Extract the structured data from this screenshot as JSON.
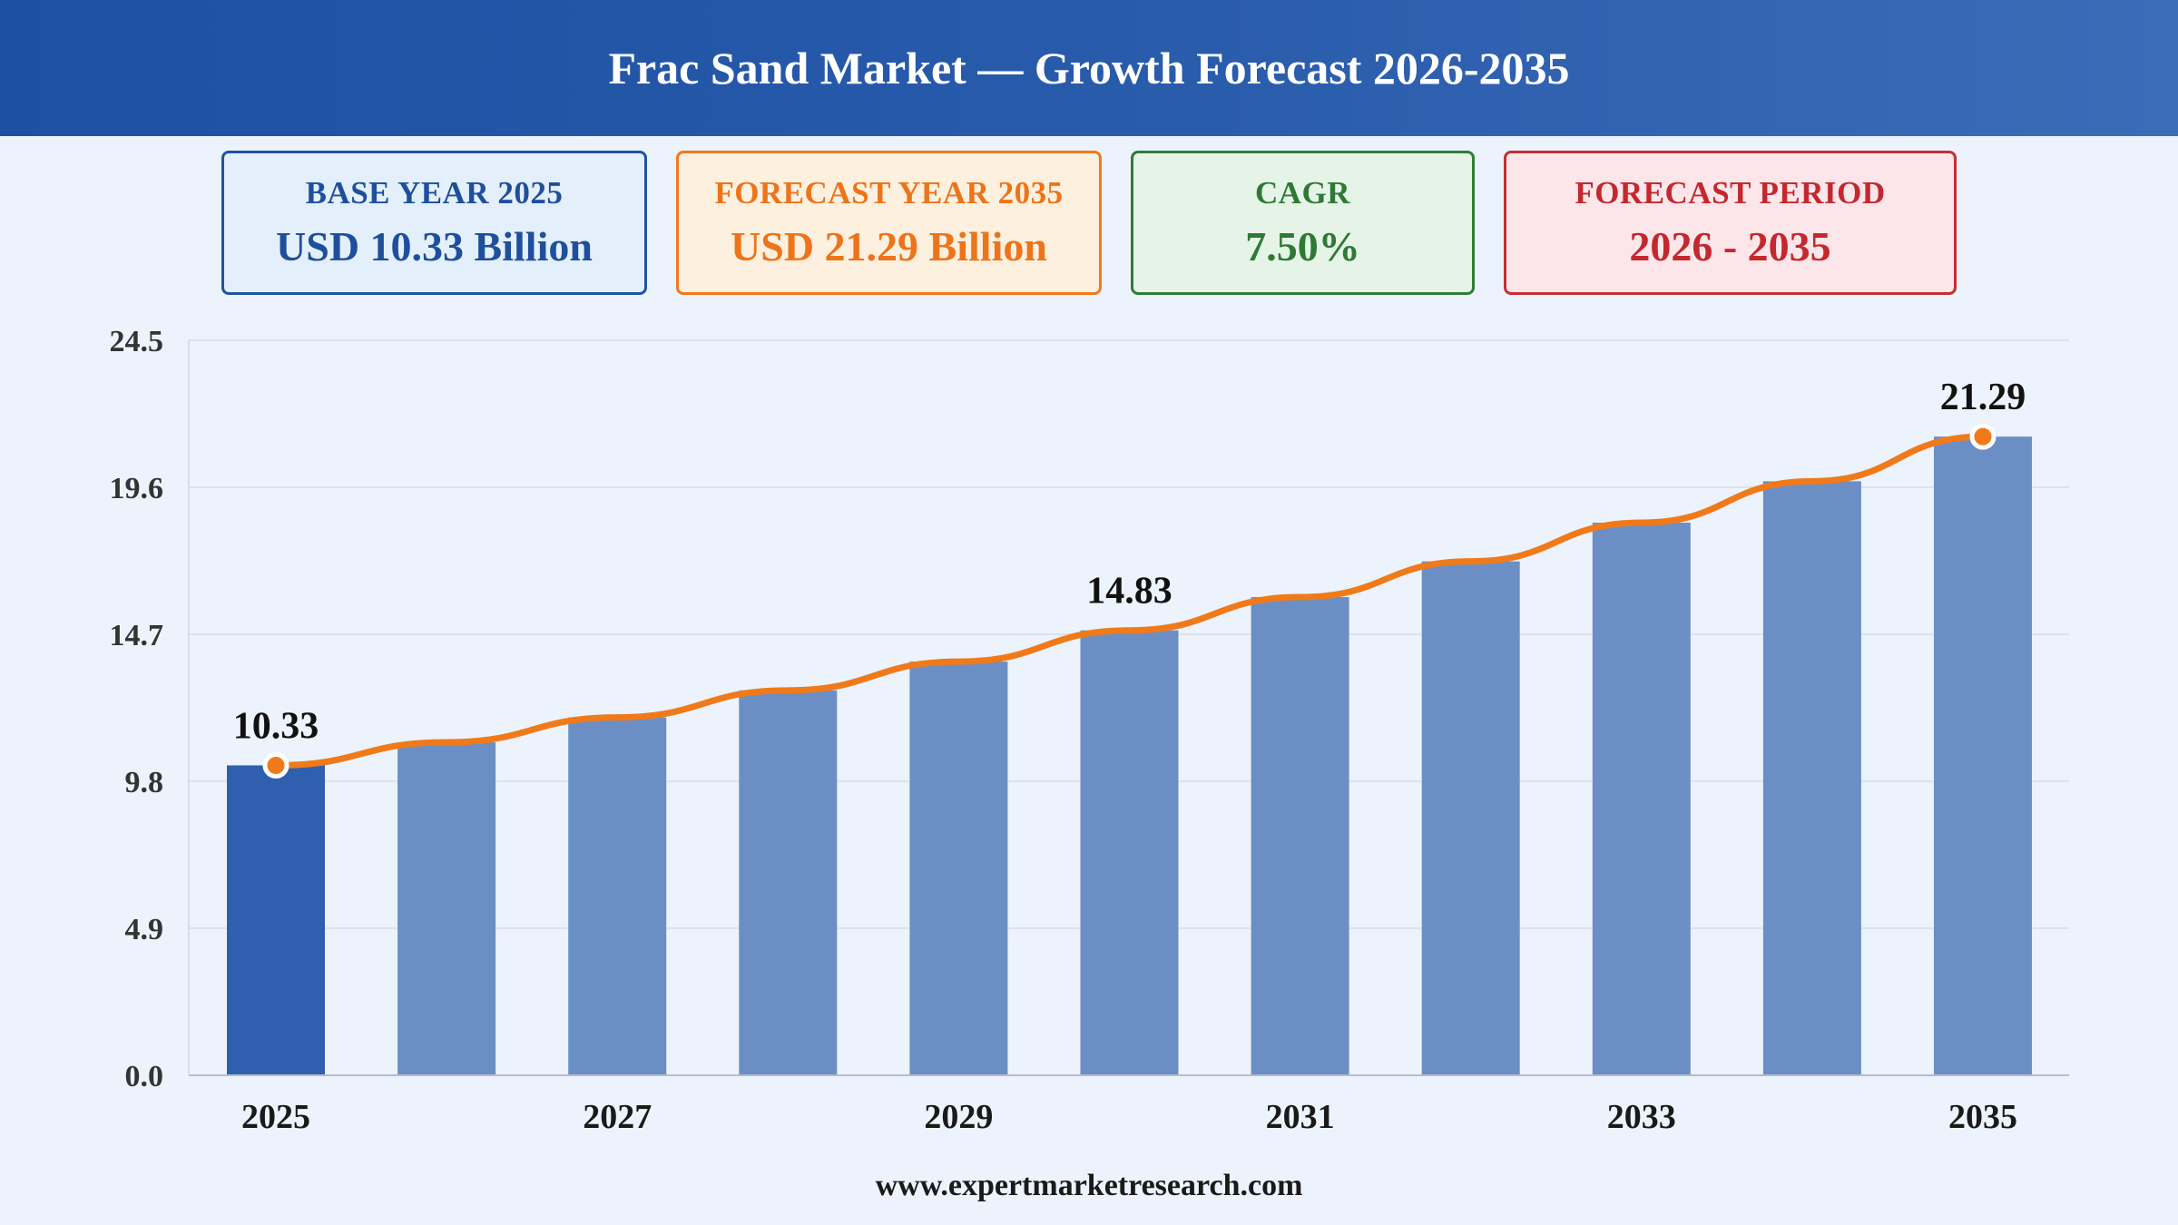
{
  "header": {
    "title": "Frac Sand Market — Growth Forecast 2026-2035"
  },
  "cards": [
    {
      "label": "BASE YEAR 2025",
      "value": "USD 10.33 Billion"
    },
    {
      "label": "FORECAST YEAR 2035",
      "value": "USD 21.29 Billion"
    },
    {
      "label": "CAGR",
      "value": "7.50%"
    },
    {
      "label": "FORECAST PERIOD",
      "value": "2026 - 2035"
    }
  ],
  "colors": {
    "bar_highlight": "#2f5fae",
    "bar": "#6b8fc4",
    "line": "#f07a1a",
    "grid": "#d8dde6",
    "axis_text": "#333333"
  },
  "chart_data": {
    "type": "bar",
    "categories": [
      "2025",
      "2026",
      "2027",
      "2028",
      "2029",
      "2030",
      "2031",
      "2032",
      "2033",
      "2034",
      "2035"
    ],
    "values": [
      10.33,
      11.1,
      11.93,
      12.83,
      13.79,
      14.83,
      15.94,
      17.13,
      18.42,
      19.8,
      21.29
    ],
    "x_tick_labels": [
      "2025",
      "",
      "2027",
      "",
      "2029",
      "",
      "2031",
      "",
      "2033",
      "",
      "2035"
    ],
    "y_ticks": [
      "0.0",
      "4.9",
      "9.8",
      "14.7",
      "19.6",
      "24.5"
    ],
    "ylim": [
      0,
      24.5
    ],
    "trend_line": true,
    "data_labels": [
      {
        "index": 0,
        "text": "10.33"
      },
      {
        "index": 5,
        "text": "14.83"
      },
      {
        "index": 10,
        "text": "21.29"
      }
    ],
    "highlight_index": 0,
    "grid": true,
    "title": "",
    "xlabel": "",
    "ylabel": ""
  },
  "footer": {
    "source": "www.expertmarketresearch.com"
  }
}
